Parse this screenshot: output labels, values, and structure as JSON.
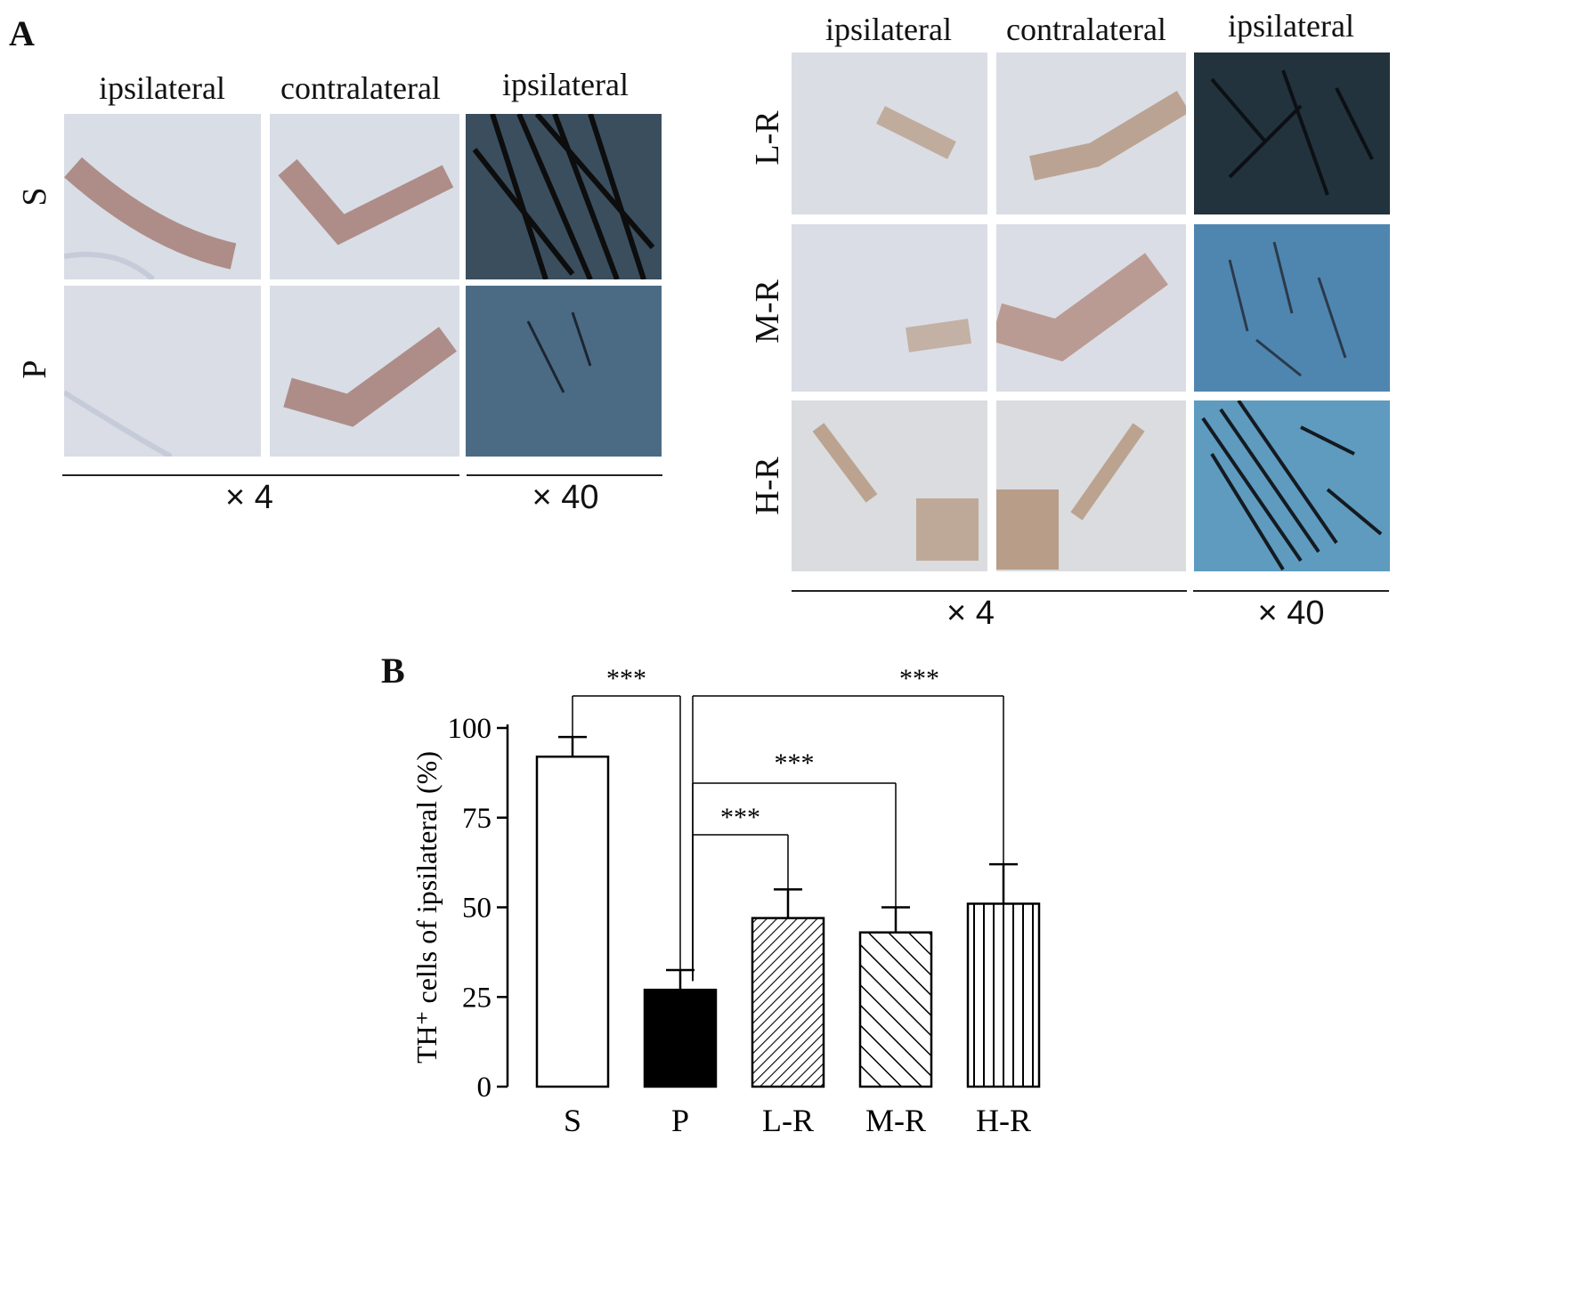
{
  "panelA": {
    "letter": "A",
    "left": {
      "columns": [
        "ipsilateral",
        "contralateral",
        "ipsilateral"
      ],
      "rows": [
        "S",
        "P"
      ],
      "mag_low": "× 4",
      "mag_high": "× 40"
    },
    "right": {
      "columns": [
        "ipsilateral",
        "contralateral",
        "ipsilateral"
      ],
      "rows": [
        "L-R",
        "M-R",
        "H-R"
      ],
      "mag_low": "× 4",
      "mag_high": "× 40"
    }
  },
  "panelB": {
    "letter": "B",
    "chart_data": {
      "type": "bar",
      "categories": [
        "S",
        "P",
        "L-R",
        "M-R",
        "H-R"
      ],
      "values": [
        92,
        27,
        47,
        43,
        51
      ],
      "errors": [
        5.5,
        5.5,
        8,
        7,
        11
      ],
      "fills": [
        "white",
        "solid-black",
        "diagonal-fine",
        "diagonal-coarse",
        "vertical-lines"
      ],
      "ylabel": "TH⁺ cells of ipsilateral (%)",
      "ylim": [
        0,
        100
      ],
      "yticks": [
        0,
        25,
        50,
        75,
        100
      ],
      "significance": [
        {
          "from": "S",
          "to": "P",
          "label": "***"
        },
        {
          "from": "P",
          "to": "L-R",
          "label": "***"
        },
        {
          "from": "P",
          "to": "M-R",
          "label": "***"
        },
        {
          "from": "P",
          "to": "H-R",
          "label": "***"
        }
      ]
    }
  }
}
